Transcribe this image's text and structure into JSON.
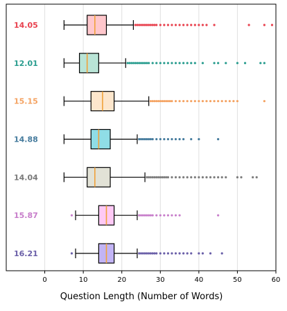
{
  "chart_data": {
    "type": "boxplot",
    "orientation": "horizontal",
    "title": "",
    "xlabel": "Question Length (Number of Words)",
    "ylabel": "",
    "xlim": [
      -10,
      60
    ],
    "xticks": [
      0,
      10,
      20,
      30,
      40,
      50,
      60
    ],
    "grid": "vertical",
    "rows": [
      {
        "label": "14.05",
        "color": "#e8414e",
        "fill": "#ffc7cc",
        "median_color": "#f0a23a",
        "whisker_low": 5,
        "q1": 11,
        "median": 13,
        "q3": 16,
        "whisker_high": 23,
        "outliers": [
          23.5,
          24,
          24.5,
          25,
          25.5,
          26,
          26.5,
          27,
          27.5,
          28,
          28.5,
          29,
          30,
          31,
          32,
          33,
          34,
          35,
          36,
          37,
          38,
          39,
          40,
          41,
          42,
          44,
          53,
          57,
          59
        ]
      },
      {
        "label": "12.01",
        "color": "#2a9d8f",
        "fill": "#b9e4d6",
        "median_color": "#f0a23a",
        "whisker_low": 5,
        "q1": 9,
        "median": 11,
        "q3": 14,
        "whisker_high": 21,
        "outliers": [
          21.5,
          22,
          22.5,
          23,
          23.5,
          24,
          24.5,
          25,
          25.5,
          26,
          26.5,
          27,
          28,
          29,
          30,
          31,
          32,
          33,
          34,
          35,
          36,
          37,
          38,
          39,
          41,
          44,
          45,
          47,
          50,
          52,
          56,
          57
        ]
      },
      {
        "label": "15.15",
        "color": "#f4a261",
        "fill": "#fde6cc",
        "median_color": "#f0a23a",
        "whisker_low": 5,
        "q1": 12,
        "median": 15,
        "q3": 18,
        "whisker_high": 27,
        "outliers": [
          27.5,
          28,
          28.5,
          29,
          29.5,
          30,
          30.5,
          31,
          31.5,
          32,
          32.5,
          33,
          34,
          35,
          36,
          37,
          38,
          39,
          40,
          41,
          42,
          43,
          44,
          45,
          46,
          47,
          48,
          49,
          50,
          57
        ]
      },
      {
        "label": "14.88",
        "color": "#457b9d",
        "fill": "#8fdde6",
        "median_color": "#f0a23a",
        "whisker_low": 5,
        "q1": 12,
        "median": 14,
        "q3": 17,
        "whisker_high": 24,
        "outliers": [
          24.5,
          25,
          25.5,
          26,
          26.5,
          27,
          27.5,
          28,
          29,
          30,
          31,
          32,
          33,
          34,
          35,
          36,
          38,
          40,
          45
        ]
      },
      {
        "label": "14.04",
        "color": "#7a7a7a",
        "fill": "#e2e2d6",
        "median_color": "#f0a23a",
        "whisker_low": 5,
        "q1": 11,
        "median": 13,
        "q3": 17,
        "whisker_high": 26,
        "outliers": [
          26.5,
          27,
          27.5,
          28,
          28.5,
          29,
          29.5,
          30,
          30.5,
          31,
          31.5,
          32,
          33,
          34,
          35,
          36,
          37,
          38,
          39,
          40,
          41,
          42,
          43,
          44,
          45,
          46,
          47,
          50,
          51,
          54,
          55
        ]
      },
      {
        "label": "15.87",
        "color": "#c77dca",
        "fill": "#ffc9f5",
        "median_color": "#f0a23a",
        "whisker_low": 8,
        "q1": 14,
        "median": 16,
        "q3": 18,
        "whisker_high": 24,
        "outliers": [
          7,
          24.5,
          25,
          25.5,
          26,
          26.5,
          27,
          27.5,
          28,
          29,
          30,
          31,
          32,
          33,
          34,
          35,
          45
        ]
      },
      {
        "label": "16.21",
        "color": "#6a5fa8",
        "fill": "#c2b4f5",
        "median_color": "#f0a23a",
        "whisker_low": 8,
        "q1": 14,
        "median": 16,
        "q3": 18,
        "whisker_high": 24,
        "outliers": [
          7,
          24.5,
          25,
          25.5,
          26,
          26.5,
          27,
          27.5,
          28,
          28.5,
          29,
          30,
          31,
          32,
          33,
          34,
          35,
          36,
          37,
          38,
          40,
          41,
          43,
          46
        ]
      }
    ]
  },
  "colors": {
    "axis": "#000000",
    "grid": "#e0e0e0",
    "box_edge": "#000000",
    "whisker": "#000000",
    "outlier_dots": [
      "#e8414e",
      "#2a9d8f",
      "#f4a261",
      "#457b9d",
      "#7a7a7a",
      "#6a5fa8",
      "#c77dca"
    ]
  }
}
